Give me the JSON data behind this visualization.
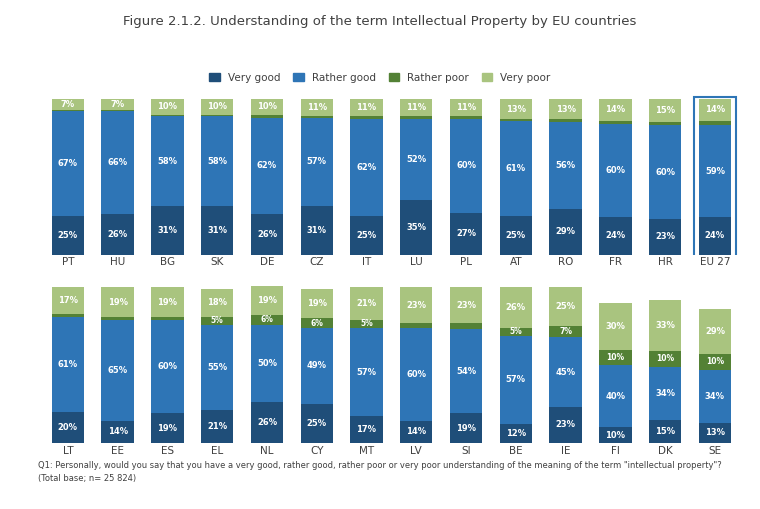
{
  "title": "Figure 2.1.2. Understanding of the term Intellectual Property by EU countries",
  "footnote": "Q1: Personally, would you say that you have a very good, rather good, rather poor or very poor understanding of the meaning of the term \"intellectual property\"?\n(Total base; n= 25 824)",
  "legend_labels": [
    "Very good",
    "Rather good",
    "Rather poor",
    "Very poor"
  ],
  "colors": [
    "#1f4e79",
    "#2e75b6",
    "#538135",
    "#a9c47f"
  ],
  "row1": {
    "countries": [
      "PT",
      "HU",
      "BG",
      "SK",
      "DE",
      "CZ",
      "IT",
      "LU",
      "PL",
      "AT",
      "RO",
      "FR",
      "HR",
      "EU 27"
    ],
    "very_good": [
      25,
      26,
      31,
      31,
      26,
      31,
      25,
      35,
      27,
      25,
      29,
      24,
      23,
      24
    ],
    "rather_good": [
      67,
      66,
      58,
      58,
      62,
      57,
      62,
      52,
      60,
      61,
      56,
      60,
      60,
      59
    ],
    "rather_poor": [
      1,
      1,
      1,
      1,
      2,
      1,
      2,
      2,
      2,
      1,
      2,
      2,
      2,
      3
    ],
    "very_poor": [
      7,
      7,
      10,
      10,
      10,
      11,
      11,
      11,
      11,
      13,
      13,
      14,
      15,
      14
    ]
  },
  "row2": {
    "countries": [
      "LT",
      "EE",
      "ES",
      "EL",
      "NL",
      "CY",
      "MT",
      "LV",
      "SI",
      "BE",
      "IE",
      "FI",
      "DK",
      "SE"
    ],
    "very_good": [
      20,
      14,
      19,
      21,
      26,
      25,
      17,
      14,
      19,
      12,
      23,
      10,
      15,
      13
    ],
    "rather_good": [
      61,
      65,
      60,
      55,
      50,
      49,
      57,
      60,
      54,
      57,
      45,
      40,
      34,
      34
    ],
    "rather_poor": [
      2,
      2,
      2,
      5,
      6,
      6,
      5,
      3,
      4,
      5,
      7,
      10,
      10,
      10
    ],
    "very_poor": [
      17,
      19,
      19,
      18,
      19,
      19,
      21,
      23,
      23,
      26,
      25,
      30,
      33,
      29
    ]
  },
  "eu27_index": 13,
  "bar_width": 0.65,
  "background_color": "#ffffff",
  "text_fontsize": 6.0,
  "title_fontsize": 9.5,
  "axis_label_fontsize": 7.5
}
